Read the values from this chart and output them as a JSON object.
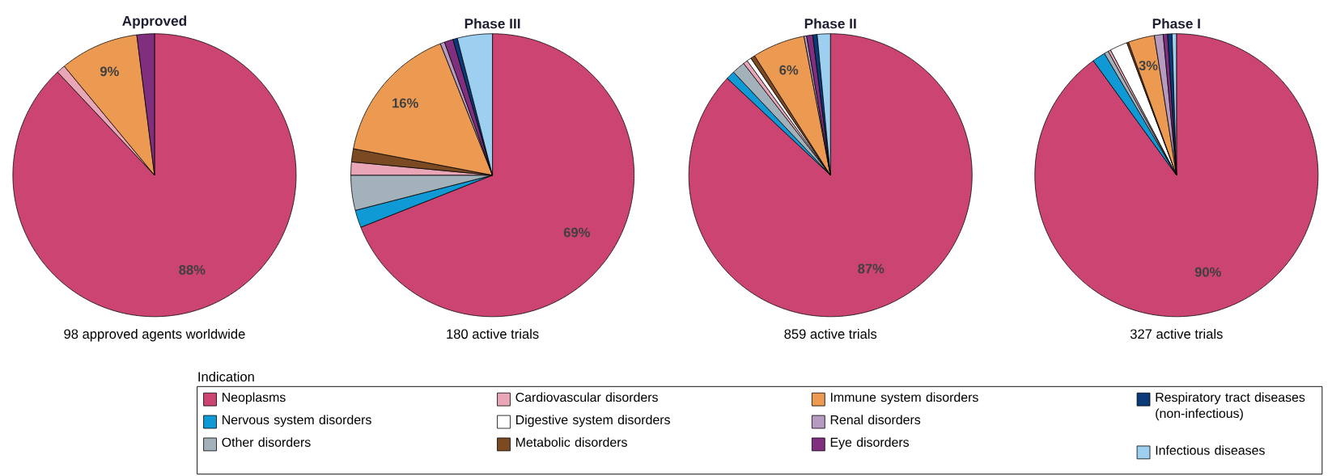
{
  "chart_data": [
    {
      "type": "pie",
      "title": "Approved",
      "annotations": [
        "98 approved agents worldwide"
      ],
      "legend": "bottom",
      "legend_title": "Indication",
      "categories": [
        "Neoplasms",
        "Nervous system disorders",
        "Other disorders",
        "Cardiovascular disorders",
        "Digestive system disorders",
        "Metabolic disorders",
        "Immune system disorders",
        "Renal disorders",
        "Eye disorders",
        "Respiratory tract diseases (non-infectious)",
        "Infectious diseases"
      ],
      "colors": [
        "#cc4472",
        "#0f9ad6",
        "#a3b2ba",
        "#e8a6b6",
        "#ffffff",
        "#7b4a22",
        "#ec9a52",
        "#b69ac0",
        "#7f2f7d",
        "#0b3a78",
        "#9ccff0"
      ],
      "values": [
        88,
        0,
        0,
        1,
        0,
        0,
        9,
        0,
        2,
        0,
        0
      ],
      "value_labels": [
        "88%",
        null,
        null,
        null,
        null,
        null,
        "9%",
        null,
        null,
        null,
        null
      ]
    },
    {
      "type": "pie",
      "title": "Phase III",
      "annotations": [
        "180 active trials"
      ],
      "colors": [
        "#cc4472",
        "#0f9ad6",
        "#a3b2ba",
        "#e8a6b6",
        "#ffffff",
        "#7b4a22",
        "#ec9a52",
        "#b69ac0",
        "#7f2f7d",
        "#0b3a78",
        "#9ccff0"
      ],
      "values": [
        69,
        2,
        4,
        1.5,
        0,
        1.5,
        16,
        0.5,
        1,
        0.5,
        4
      ],
      "value_labels": [
        "69%",
        null,
        null,
        null,
        null,
        null,
        "16%",
        null,
        null,
        null,
        null
      ]
    },
    {
      "type": "pie",
      "title": "Phase II",
      "annotations": [
        "859 active trials"
      ],
      "colors": [
        "#cc4472",
        "#0f9ad6",
        "#a3b2ba",
        "#e8a6b6",
        "#ffffff",
        "#7b4a22",
        "#ec9a52",
        "#b69ac0",
        "#7f2f7d",
        "#0b3a78",
        "#9ccff0"
      ],
      "values": [
        87,
        1,
        1.5,
        0.5,
        0.5,
        0.5,
        6,
        0.3,
        0.7,
        0.5,
        1.5
      ],
      "value_labels": [
        "87%",
        null,
        null,
        null,
        null,
        null,
        "6%",
        null,
        null,
        null,
        null
      ]
    },
    {
      "type": "pie",
      "title": "Phase I",
      "annotations": [
        "327 active trials"
      ],
      "colors": [
        "#cc4472",
        "#0f9ad6",
        "#a3b2ba",
        "#e8a6b6",
        "#ffffff",
        "#7b4a22",
        "#ec9a52",
        "#b69ac0",
        "#7f2f7d",
        "#0b3a78",
        "#9ccff0"
      ],
      "values": [
        90,
        1.5,
        0.5,
        0.3,
        2,
        0.2,
        3,
        1,
        0.5,
        0.5,
        0.5
      ],
      "value_labels": [
        "90%",
        null,
        null,
        null,
        null,
        null,
        "3%",
        null,
        null,
        null,
        null
      ]
    }
  ]
}
